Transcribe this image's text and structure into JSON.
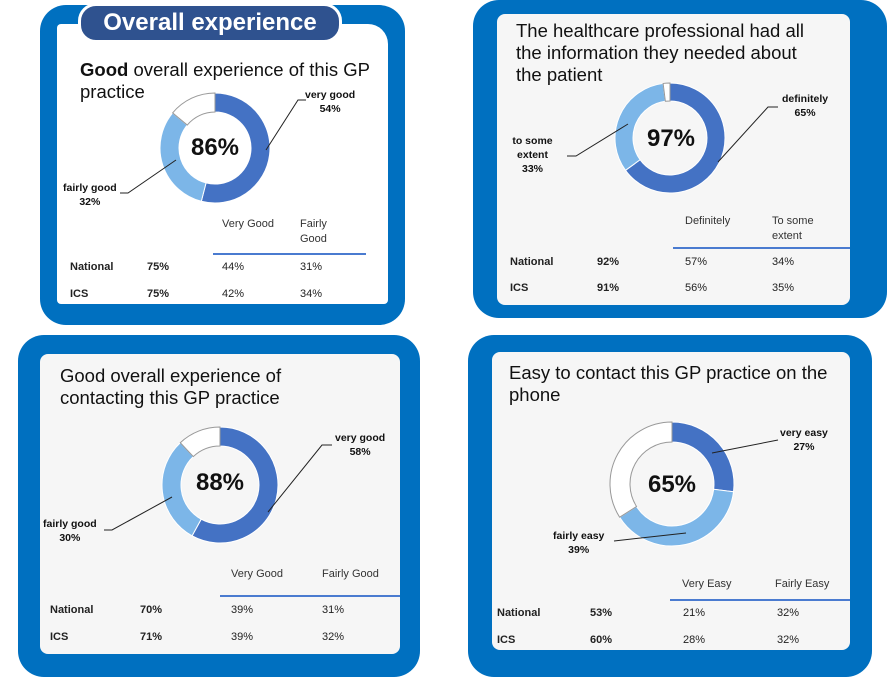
{
  "colors": {
    "frame": "#0070c0",
    "primary": "#4472c4",
    "secondary": "#7cb6e8",
    "remainder": "#ffffff",
    "pill": "#2f528f"
  },
  "chart_data": [
    {
      "type": "pie",
      "variant": "donut",
      "section_title": "Overall experience",
      "title_bold": "Good",
      "title": "overall experience of this GP practice",
      "center_label": "86%",
      "series": [
        {
          "name": "very good",
          "value": 54,
          "label": "54%"
        },
        {
          "name": "fairly good",
          "value": 32,
          "label": "32%"
        }
      ],
      "table": {
        "headers": [
          "",
          "",
          "Very Good",
          "Fairly Good"
        ],
        "rows": [
          [
            "National",
            "75%",
            "44%",
            "31%"
          ],
          [
            "ICS",
            "75%",
            "42%",
            "34%"
          ]
        ]
      }
    },
    {
      "type": "pie",
      "variant": "donut",
      "title": "The healthcare professional had all the information they needed about the patient",
      "center_label": "97%",
      "series": [
        {
          "name": "definitely",
          "value": 65,
          "label": "65%"
        },
        {
          "name": "to some extent",
          "value": 33,
          "label": "33%"
        }
      ],
      "table": {
        "headers": [
          "",
          "",
          "Definitely",
          "To some extent"
        ],
        "rows": [
          [
            "National",
            "92%",
            "57%",
            "34%"
          ],
          [
            "ICS",
            "91%",
            "56%",
            "35%"
          ]
        ]
      }
    },
    {
      "type": "pie",
      "variant": "donut",
      "title": "Good overall experience of contacting this GP practice",
      "center_label": "88%",
      "series": [
        {
          "name": "very good",
          "value": 58,
          "label": "58%"
        },
        {
          "name": "fairly good",
          "value": 30,
          "label": "30%"
        }
      ],
      "table": {
        "headers": [
          "",
          "",
          "Very Good",
          "Fairly Good"
        ],
        "rows": [
          [
            "National",
            "70%",
            "39%",
            "31%"
          ],
          [
            "ICS",
            "71%",
            "39%",
            "32%"
          ]
        ]
      }
    },
    {
      "type": "pie",
      "variant": "donut",
      "title": "Easy to contact this GP practice on the phone",
      "center_label": "65%",
      "series": [
        {
          "name": "very easy",
          "value": 27,
          "label": "27%"
        },
        {
          "name": "fairly easy",
          "value": 39,
          "label": "39%"
        }
      ],
      "table": {
        "headers": [
          "",
          "",
          "Very Easy",
          "Fairly Easy"
        ],
        "rows": [
          [
            "National",
            "53%",
            "21%",
            "32%"
          ],
          [
            "ICS",
            "60%",
            "28%",
            "32%"
          ]
        ]
      }
    }
  ]
}
